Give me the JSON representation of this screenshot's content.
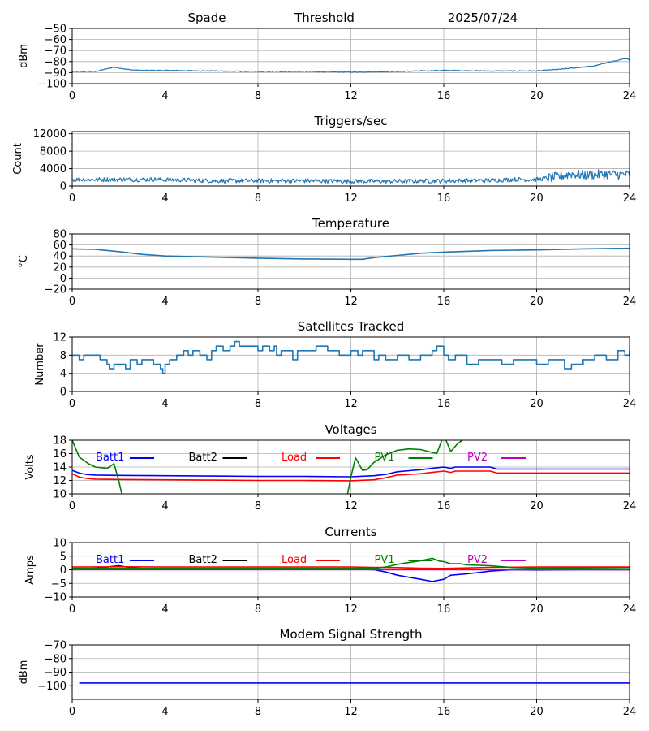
{
  "header": {
    "site": "Spade",
    "mode": "Threshold",
    "date": "2025/07/24"
  },
  "colors": {
    "series_default": "#1f77b4",
    "grid": "#b0b0b0",
    "batt1": "#0000ff",
    "batt2": "#000000",
    "load": "#ff0000",
    "pv1": "#008000",
    "pv2": "#bf00bf",
    "modem": "#0000ff"
  },
  "chart_data": [
    {
      "id": "threshold",
      "type": "line",
      "title": "",
      "xlabel": "",
      "ylabel": "dBm",
      "xlim": [
        0,
        24
      ],
      "ylim": [
        -100,
        -50
      ],
      "xticks": [
        0,
        4,
        8,
        12,
        16,
        20,
        24
      ],
      "yticks": [
        -100,
        -90,
        -80,
        -70,
        -60,
        -50
      ],
      "grid": true,
      "series": [
        {
          "noise": 0.4,
          "x": [
            0,
            1,
            1.8,
            2.5,
            3,
            4,
            6,
            8,
            10,
            12,
            14,
            16,
            18,
            20,
            21,
            22,
            22.5,
            23,
            23.5,
            23.8,
            24
          ],
          "y": [
            -89,
            -89,
            -85,
            -87.5,
            -88,
            -88,
            -88.5,
            -89,
            -89,
            -89.5,
            -89,
            -88,
            -88.5,
            -88.5,
            -87,
            -85,
            -84,
            -81,
            -79,
            -77.5,
            -78
          ]
        }
      ]
    },
    {
      "id": "triggers",
      "type": "line",
      "title": "Triggers/sec",
      "xlabel": "",
      "ylabel": "Count",
      "xlim": [
        0,
        24
      ],
      "ylim": [
        0,
        12500
      ],
      "xticks": [
        0,
        4,
        8,
        12,
        16,
        20,
        24
      ],
      "yticks": [
        0,
        4000,
        8000,
        12000
      ],
      "grid": true,
      "series": [
        {
          "noise": 500,
          "x": [
            0,
            2,
            4,
            6,
            8,
            10,
            12,
            14,
            16,
            18,
            19,
            20,
            21,
            21.5,
            22,
            23,
            24
          ],
          "y": [
            1500,
            1500,
            1500,
            1200,
            1200,
            1200,
            1100,
            1100,
            1200,
            1300,
            1500,
            1500,
            2200,
            2800,
            2500,
            2700,
            2600
          ]
        }
      ]
    },
    {
      "id": "temperature",
      "type": "line",
      "title": "Temperature",
      "xlabel": "",
      "ylabel": "°C",
      "xlim": [
        0,
        24
      ],
      "ylim": [
        -20,
        80
      ],
      "xticks": [
        0,
        4,
        8,
        12,
        16,
        20,
        24
      ],
      "yticks": [
        -20,
        0,
        20,
        40,
        60,
        80
      ],
      "grid": true,
      "series": [
        {
          "noise": 0,
          "x": [
            0,
            1,
            2,
            3,
            4,
            6,
            8,
            10,
            12,
            12.5,
            13,
            14,
            15,
            16,
            18,
            20,
            22,
            24
          ],
          "y": [
            53,
            52,
            48,
            43,
            40,
            38,
            36,
            34.5,
            34,
            34,
            37,
            41,
            45,
            47,
            50,
            51,
            53,
            54
          ]
        }
      ]
    },
    {
      "id": "satellites",
      "type": "line",
      "title": "Satellites Tracked",
      "xlabel": "",
      "ylabel": "Number",
      "xlim": [
        0,
        24
      ],
      "ylim": [
        0,
        12
      ],
      "xticks": [
        0,
        4,
        8,
        12,
        16,
        20,
        24
      ],
      "yticks": [
        0,
        4,
        8,
        12
      ],
      "grid": true,
      "series": [
        {
          "step": true,
          "x": [
            0,
            0.3,
            0.5,
            1,
            1.2,
            1.5,
            1.6,
            1.8,
            2,
            2.3,
            2.5,
            2.8,
            3,
            3.5,
            3.8,
            3.9,
            4,
            4.2,
            4.5,
            4.8,
            5,
            5.2,
            5.5,
            5.8,
            6,
            6.2,
            6.5,
            6.8,
            7,
            7.2,
            7.5,
            8,
            8.2,
            8.5,
            8.7,
            8.8,
            9,
            9.5,
            9.7,
            10,
            10.5,
            11,
            11.5,
            12,
            12.3,
            12.5,
            13,
            13.2,
            13.5,
            14,
            14.5,
            15,
            15.5,
            15.7,
            16,
            16.2,
            16.5,
            17,
            17.5,
            18,
            18.5,
            19,
            19.5,
            20,
            20.5,
            21,
            21.2,
            21.5,
            22,
            22.5,
            23,
            23.5,
            23.8,
            24
          ],
          "y": [
            8,
            7,
            8,
            8,
            7,
            6,
            5,
            6,
            6,
            5,
            7,
            6,
            7,
            6,
            5,
            4,
            6,
            7,
            8,
            9,
            8,
            9,
            8,
            7,
            9,
            10,
            9,
            10,
            11,
            10,
            10,
            9,
            10,
            9,
            10,
            8,
            9,
            7,
            9,
            9,
            10,
            9,
            8,
            9,
            8,
            9,
            7,
            8,
            7,
            8,
            7,
            8,
            9,
            10,
            8,
            7,
            8,
            6,
            7,
            7,
            6,
            7,
            7,
            6,
            7,
            7,
            5,
            6,
            7,
            8,
            7,
            9,
            8,
            9
          ]
        }
      ]
    },
    {
      "id": "voltages",
      "type": "line",
      "title": "Voltages",
      "xlabel": "",
      "ylabel": "Volts",
      "xlim": [
        0,
        24
      ],
      "ylim": [
        10,
        18
      ],
      "xticks": [
        0,
        4,
        8,
        12,
        16,
        20,
        24
      ],
      "yticks": [
        10,
        12,
        14,
        16,
        18
      ],
      "grid": true,
      "legend": "top-inline",
      "series": [
        {
          "name": "Batt1",
          "color": "#0000ff",
          "x": [
            0,
            0.3,
            0.6,
            1,
            2,
            4,
            6,
            8,
            10,
            12,
            13,
            13.5,
            14,
            15,
            15.5,
            16,
            16.3,
            16.5,
            17,
            18,
            18.3,
            19,
            20,
            22,
            24
          ],
          "y": [
            13.5,
            13.1,
            12.9,
            12.8,
            12.75,
            12.7,
            12.65,
            12.6,
            12.6,
            12.55,
            12.7,
            12.9,
            13.3,
            13.6,
            13.8,
            14.0,
            13.8,
            14.0,
            14.0,
            14.0,
            13.7,
            13.7,
            13.7,
            13.7,
            13.7
          ]
        },
        {
          "name": "Batt2",
          "color": "#000000",
          "x": [],
          "y": []
        },
        {
          "name": "Load",
          "color": "#ff0000",
          "x": [
            0,
            0.3,
            0.6,
            1,
            2,
            4,
            6,
            8,
            10,
            12,
            13,
            13.5,
            14,
            15,
            15.5,
            16,
            16.3,
            16.5,
            17,
            18,
            18.3,
            19,
            20,
            22,
            24
          ],
          "y": [
            13.0,
            12.5,
            12.3,
            12.2,
            12.15,
            12.1,
            12.05,
            12.0,
            12.0,
            11.95,
            12.1,
            12.4,
            12.8,
            13.0,
            13.2,
            13.4,
            13.2,
            13.4,
            13.4,
            13.4,
            13.1,
            13.1,
            13.1,
            13.1,
            13.1
          ]
        },
        {
          "name": "PV1",
          "color": "#008000",
          "x": [
            0,
            0.3,
            0.7,
            1,
            1.5,
            1.8,
            2.0,
            2.2,
            11.8,
            12.0,
            12.2,
            12.5,
            12.7,
            13,
            13.5,
            14,
            14.5,
            15,
            15.7,
            16,
            16.3,
            16.6,
            17
          ],
          "y": [
            18,
            15.5,
            14.5,
            14.0,
            13.8,
            14.5,
            12.0,
            9.0,
            9.0,
            12.5,
            15.4,
            13.5,
            13.6,
            14.7,
            15.8,
            16.5,
            16.7,
            16.6,
            16.0,
            18.8,
            16.3,
            17.5,
            18.5
          ]
        },
        {
          "name": "PV2",
          "color": "#bf00bf",
          "x": [],
          "y": []
        }
      ]
    },
    {
      "id": "currents",
      "type": "line",
      "title": "Currents",
      "xlabel": "",
      "ylabel": "Amps",
      "xlim": [
        0,
        24
      ],
      "ylim": [
        -10,
        10
      ],
      "xticks": [
        0,
        4,
        8,
        12,
        16,
        20,
        24
      ],
      "yticks": [
        -10,
        -5,
        0,
        5,
        10
      ],
      "grid": true,
      "legend": "top-inline",
      "series": [
        {
          "name": "Batt1",
          "color": "#0000ff",
          "x": [
            0,
            1,
            2,
            2.5,
            3,
            4,
            6,
            8,
            10,
            12,
            13,
            13.5,
            14,
            15,
            15.5,
            16,
            16.3,
            17,
            18,
            18.5,
            19,
            20,
            22,
            24
          ],
          "y": [
            0.3,
            0.6,
            1.5,
            0.8,
            0.5,
            0.5,
            0.4,
            0.3,
            0.3,
            0.3,
            0.0,
            -0.8,
            -2.0,
            -3.5,
            -4.3,
            -3.5,
            -2.0,
            -1.5,
            -0.5,
            -0.2,
            0.0,
            -0.1,
            0.0,
            0.0
          ]
        },
        {
          "name": "Batt2",
          "color": "#000000",
          "x": [],
          "y": []
        },
        {
          "name": "Load",
          "color": "#ff0000",
          "x": [
            0,
            2,
            4,
            6,
            8,
            10,
            12,
            13,
            14,
            15,
            16,
            17,
            18,
            20,
            22,
            24
          ],
          "y": [
            1.0,
            1.1,
            1.0,
            1.0,
            1.0,
            1.0,
            1.0,
            0.9,
            0.8,
            0.6,
            0.5,
            0.7,
            0.9,
            1.0,
            1.0,
            1.0
          ]
        },
        {
          "name": "PV1",
          "color": "#008000",
          "x": [
            0,
            2,
            4,
            6,
            8,
            10,
            12,
            13,
            13.5,
            14,
            15,
            15.5,
            15.8,
            16,
            16.3,
            16.7,
            17,
            18,
            19,
            20,
            22,
            24
          ],
          "y": [
            0.5,
            0.5,
            0.5,
            0.5,
            0.5,
            0.5,
            0.5,
            0.5,
            1.0,
            2.0,
            3.3,
            4.2,
            3.2,
            3.0,
            2.2,
            2.2,
            1.8,
            1.5,
            0.8,
            0.6,
            0.7,
            0.8
          ]
        },
        {
          "name": "PV2",
          "color": "#bf00bf",
          "x": [
            0,
            4,
            8,
            12,
            16,
            20,
            24
          ],
          "y": [
            0,
            0,
            0,
            0,
            0,
            0,
            0
          ]
        }
      ]
    },
    {
      "id": "modem",
      "type": "line",
      "title": "Modem Signal Strength",
      "xlabel": "",
      "ylabel": "dBm",
      "xlim": [
        0,
        24
      ],
      "ylim": [
        -110,
        -70
      ],
      "xticks": [
        0,
        4,
        8,
        12,
        16,
        20,
        24
      ],
      "yticks": [
        -100,
        -90,
        -80,
        -70
      ],
      "grid": true,
      "series": [
        {
          "color": "#0000ff",
          "x": [
            0.3,
            24
          ],
          "y": [
            -98,
            -98
          ]
        }
      ]
    }
  ]
}
